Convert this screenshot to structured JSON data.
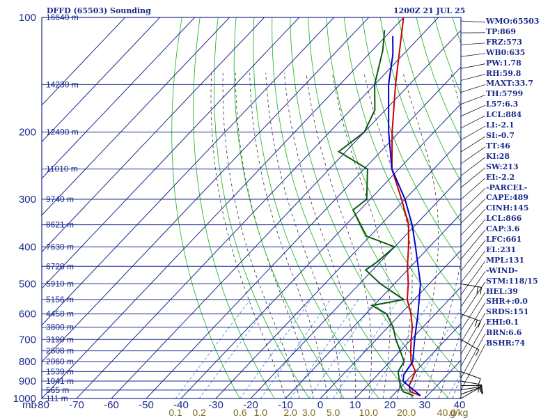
{
  "header": {
    "title": "DFFD (65503) Sounding",
    "datetime": "1200Z 21 JUL 25"
  },
  "indices": [
    "WMO:65503",
    "TP:869",
    "FRZ:573",
    "WB0:635",
    "PW:1.78",
    "RH:59.8",
    "MAXT:33.7",
    "TH:5799",
    "L57:6.3",
    "LCL:884",
    "LI:-2.1",
    "SI:-0.7",
    "TT:46",
    "KI:28",
    "SW:213",
    "EI:-2.2",
    "-PARCEL-",
    "CAPE:489",
    "CINH:145",
    "LCL:866",
    "CAP:3.6",
    "LFC:661",
    "EL:231",
    "MPL:131",
    "-WIND-",
    "STM:118/15",
    "HEL:39",
    "SHR+:0.0",
    "SRDS:151",
    "EHI:0.1",
    "BRN:6.6",
    "BSHR:74"
  ],
  "colors": {
    "isobar": "#1a2a8a",
    "isotherm": "#1a2a8a",
    "dry_adiabat": "#2db82d",
    "moist_adiabat": "#333333",
    "mixing_ratio": "#4499dd",
    "temperature": "#cc0000",
    "dewpoint": "#0a5a0a",
    "parcel": "#0000cc",
    "axis_text": "#1a2a8a",
    "mixing_text": "#7a6a1a"
  },
  "chart_data": {
    "type": "line",
    "chart_kind": "skew-T log-P sounding diagram",
    "xlabel": "",
    "x_unit_label": "mb",
    "mixing_unit_label": "g/kg",
    "xlim": [
      -80,
      40
    ],
    "ylim": [
      1000,
      100
    ],
    "y_scale": "log",
    "grid": true,
    "temperature_ticks": [
      "-80",
      "-70",
      "-60",
      "-50",
      "-40",
      "-30",
      "-20",
      "-10",
      "0",
      "10",
      "20",
      "30",
      "40"
    ],
    "pressure_ticks": [
      "100",
      "200",
      "300",
      "400",
      "500",
      "600",
      "700",
      "800",
      "900",
      "1000"
    ],
    "height_labels": [
      {
        "p": 100,
        "label": "16640 m"
      },
      {
        "p": 150,
        "label": "14230 m"
      },
      {
        "p": 200,
        "label": "12490 m"
      },
      {
        "p": 250,
        "label": "11010 m"
      },
      {
        "p": 300,
        "label": "9740 m"
      },
      {
        "p": 350,
        "label": "8621 m"
      },
      {
        "p": 400,
        "label": "7630 m"
      },
      {
        "p": 450,
        "label": "6728 m"
      },
      {
        "p": 500,
        "label": "5910 m"
      },
      {
        "p": 550,
        "label": "5156 m"
      },
      {
        "p": 600,
        "label": "4458 m"
      },
      {
        "p": 650,
        "label": "3800 m"
      },
      {
        "p": 700,
        "label": "3190 m"
      },
      {
        "p": 750,
        "label": "2608 m"
      },
      {
        "p": 800,
        "label": "2060 m"
      },
      {
        "p": 850,
        "label": "1539 m"
      },
      {
        "p": 900,
        "label": "1041 m"
      },
      {
        "p": 950,
        "label": "565 m"
      },
      {
        "p": 1000,
        "label": "111 m"
      }
    ],
    "mixing_ratio_labels": [
      "0.1",
      "0.2",
      "0.6",
      "1.0",
      "2.0",
      "3.0",
      "5.0",
      "10.0",
      "20.0",
      "40.0"
    ],
    "series": [
      {
        "id": "temperature",
        "points": [
          [
            983,
            28
          ],
          [
            960,
            24
          ],
          [
            925,
            22
          ],
          [
            900,
            21.4
          ],
          [
            850,
            20
          ],
          [
            800,
            16
          ],
          [
            750,
            13
          ],
          [
            700,
            10
          ],
          [
            650,
            7
          ],
          [
            600,
            3
          ],
          [
            550,
            -2
          ],
          [
            500,
            -6
          ],
          [
            450,
            -11
          ],
          [
            400,
            -16
          ],
          [
            350,
            -22
          ],
          [
            300,
            -31
          ],
          [
            250,
            -42
          ],
          [
            200,
            -52
          ],
          [
            150,
            -64
          ],
          [
            100,
            -80
          ]
        ]
      },
      {
        "id": "dewpoint",
        "points": [
          [
            983,
            26
          ],
          [
            960,
            22
          ],
          [
            925,
            19.5
          ],
          [
            900,
            18
          ],
          [
            850,
            15
          ],
          [
            800,
            14
          ],
          [
            750,
            10
          ],
          [
            700,
            5.6
          ],
          [
            650,
            1.5
          ],
          [
            600,
            -4
          ],
          [
            570,
            -10.5
          ],
          [
            550,
            -3
          ],
          [
            500,
            -14
          ],
          [
            460,
            -22
          ],
          [
            440,
            -21
          ],
          [
            400,
            -20
          ],
          [
            375,
            -31
          ],
          [
            320,
            -42
          ],
          [
            300,
            -41
          ],
          [
            250,
            -49
          ],
          [
            225,
            -62
          ],
          [
            200,
            -60
          ],
          [
            175,
            -63
          ],
          [
            150,
            -70
          ],
          [
            122,
            -77
          ],
          [
            108,
            -82
          ]
        ]
      },
      {
        "id": "parcel",
        "points": [
          [
            983,
            28
          ],
          [
            900,
            19
          ],
          [
            866,
            17.5
          ],
          [
            800,
            16.5
          ],
          [
            700,
            11
          ],
          [
            600,
            5
          ],
          [
            500,
            -2.5
          ],
          [
            400,
            -14
          ],
          [
            350,
            -21
          ],
          [
            300,
            -30
          ],
          [
            250,
            -42
          ],
          [
            200,
            -53
          ],
          [
            150,
            -66
          ],
          [
            125,
            -73
          ],
          [
            112,
            -78
          ]
        ]
      }
    ],
    "dry_adiabats_theta_k": [
      250,
      260,
      270,
      280,
      290,
      300,
      310,
      320,
      330,
      340,
      350,
      360,
      370,
      380,
      390,
      400,
      410,
      420,
      430,
      440,
      450,
      460,
      470,
      480
    ],
    "moist_adiabats_start_c": [
      -10,
      -6,
      -2,
      2,
      6,
      10,
      14,
      18,
      22,
      26,
      30,
      34,
      38
    ],
    "mixing_ratio_lines_gkg": [
      0.1,
      0.2,
      0.6,
      1,
      2,
      3,
      5,
      10,
      20,
      40
    ],
    "winds": [
      {
        "p": 1000,
        "dir": 240,
        "spd": 10
      },
      {
        "p": 975,
        "dir": 250,
        "spd": 12
      },
      {
        "p": 950,
        "dir": 260,
        "spd": 14
      },
      {
        "p": 925,
        "dir": 270,
        "spd": 15
      },
      {
        "p": 900,
        "dir": 280,
        "spd": 12
      },
      {
        "p": 850,
        "dir": 290,
        "spd": 10
      },
      {
        "p": 700,
        "dir": 300,
        "spd": 12
      },
      {
        "p": 600,
        "dir": 290,
        "spd": 15
      },
      {
        "p": 500,
        "dir": 280,
        "spd": 15
      }
    ]
  }
}
